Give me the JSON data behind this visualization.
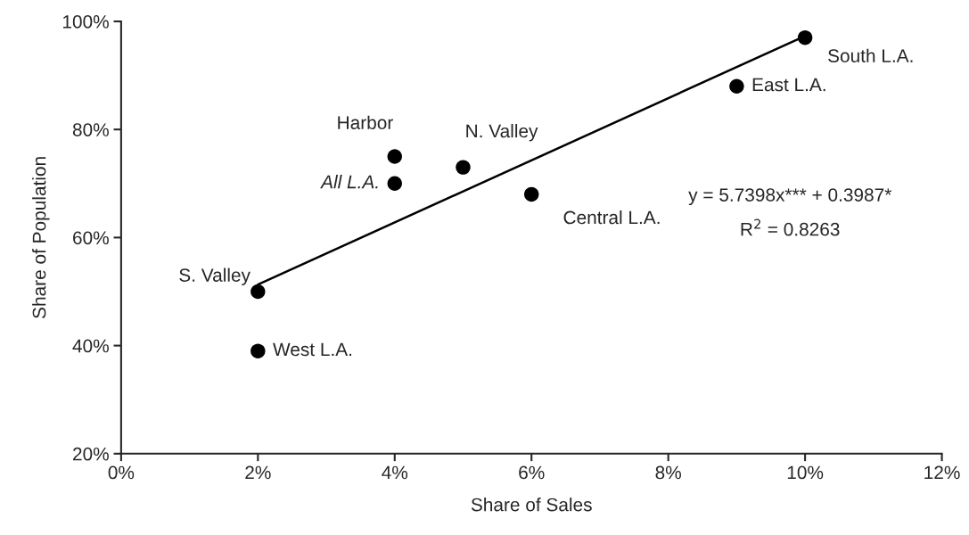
{
  "chart_data": {
    "type": "scatter",
    "xlabel": "Share of Sales",
    "ylabel": "Share of Population",
    "series": [
      {
        "color": "#000000",
        "marker": "circle",
        "x": [
          10,
          9,
          4,
          4,
          5,
          6,
          2,
          2
        ],
        "values": [
          97,
          88,
          75,
          70,
          73,
          68,
          50,
          39
        ]
      },
      {
        "type": "line",
        "color": "#000000",
        "line_style": "solid",
        "marker": "none",
        "x": [
          2,
          10
        ],
        "values": [
          51.3,
          97.3
        ]
      }
    ],
    "annotations": [
      {
        "text": "South L.A.",
        "x": 10,
        "y": 97
      },
      {
        "text": "East L.A.",
        "x": 9,
        "y": 88
      },
      {
        "text": "Harbor",
        "x": 4,
        "y": 75
      },
      {
        "text": "All L.A.",
        "x": 4,
        "y": 70
      },
      {
        "text": "N. Valley",
        "x": 5,
        "y": 73
      },
      {
        "text": "Central L.A.",
        "x": 6,
        "y": 68
      },
      {
        "text": "S. Valley",
        "x": 2,
        "y": 50
      },
      {
        "text": "West L.A.",
        "x": 2,
        "y": 39
      },
      "y = 5.7398x*** + 0.3987*",
      "R$^{2}$ = 0.8263"
    ],
    "xlim": [
      0,
      12
    ],
    "ylim": [
      20,
      100
    ],
    "xticks": [
      {
        "value": 0,
        "label": "0%"
      },
      {
        "value": 2,
        "label": "2%"
      },
      {
        "value": 4,
        "label": "4%"
      },
      {
        "value": 6,
        "label": "6%"
      },
      {
        "value": 8,
        "label": "8%"
      },
      {
        "value": 10,
        "label": "10%"
      },
      {
        "value": 12,
        "label": "12%"
      }
    ],
    "yticks": [
      {
        "value": 20,
        "label": "20%"
      },
      {
        "value": 40,
        "label": "40%"
      },
      {
        "value": 60,
        "label": "60%"
      },
      {
        "value": 80,
        "label": "80%"
      },
      {
        "value": 100,
        "label": "100%"
      }
    ],
    "grid": false
  }
}
